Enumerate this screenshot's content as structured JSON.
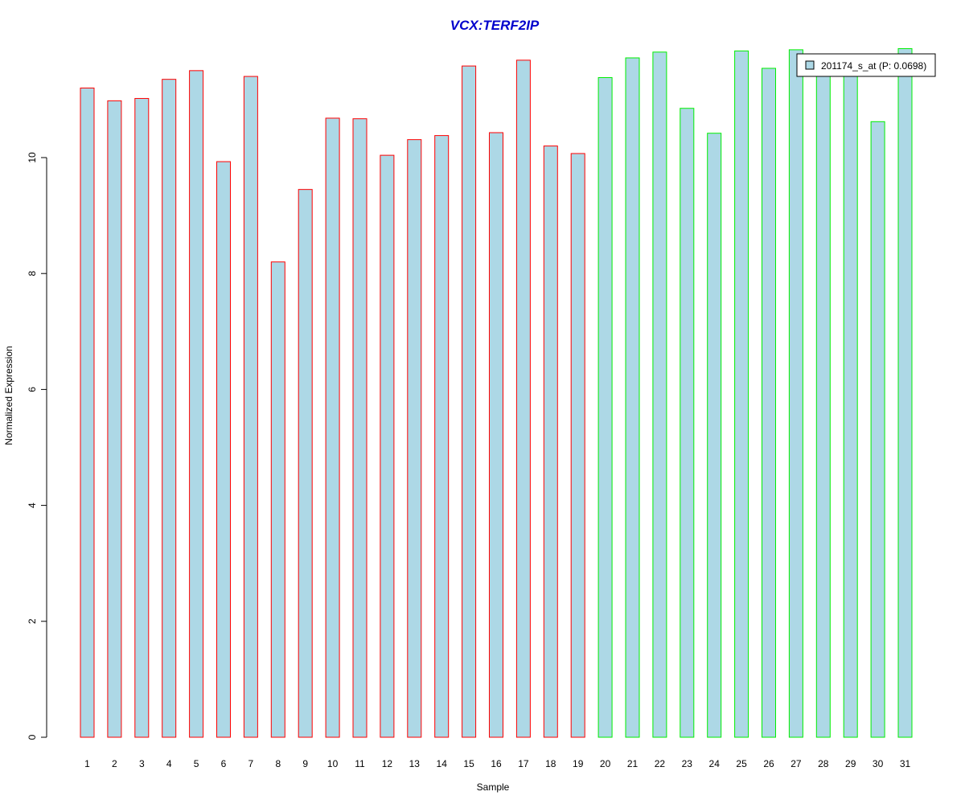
{
  "chart_data": {
    "type": "bar",
    "title": "VCX:TERF2IP",
    "title_color": "#0000CC",
    "xlabel": "Sample",
    "ylabel": "Normalized Expression",
    "ylim": [
      0,
      11.9
    ],
    "yticks": [
      0,
      2,
      4,
      6,
      8,
      10
    ],
    "grid": false,
    "legend_position": "top-right",
    "bar_fill": "#ADD8E6",
    "categories": [
      "1",
      "2",
      "3",
      "4",
      "5",
      "6",
      "7",
      "8",
      "9",
      "10",
      "11",
      "12",
      "13",
      "14",
      "15",
      "16",
      "17",
      "18",
      "19",
      "20",
      "21",
      "22",
      "23",
      "24",
      "25",
      "26",
      "27",
      "28",
      "29",
      "30",
      "31"
    ],
    "values": [
      11.2,
      10.98,
      11.02,
      11.35,
      11.5,
      9.93,
      11.4,
      8.2,
      9.45,
      10.68,
      10.67,
      10.04,
      10.31,
      10.38,
      11.58,
      10.43,
      11.68,
      10.2,
      10.07,
      11.38,
      11.72,
      11.82,
      10.85,
      10.42,
      11.84,
      11.54,
      11.86,
      11.5,
      11.5,
      10.62,
      11.88
    ],
    "groups": [
      {
        "range": [
          1,
          19
        ],
        "border_color": "#FF0000"
      },
      {
        "range": [
          20,
          31
        ],
        "border_color": "#00EE00"
      }
    ],
    "series": [
      {
        "name": "201174_s_at (P: 0.0698)",
        "values": "values"
      }
    ]
  }
}
